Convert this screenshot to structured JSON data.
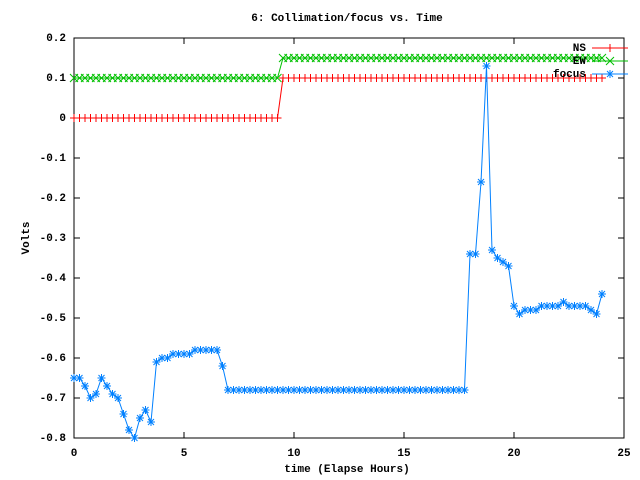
{
  "chart_data": {
    "type": "line",
    "title": "6: Collimation/focus vs. Time",
    "x_label": "time (Elapse Hours)",
    "y_label": "Volts",
    "xlim": [
      0,
      25
    ],
    "ylim": [
      -0.8,
      0.2
    ],
    "xticks": [
      0,
      5,
      10,
      15,
      20,
      25
    ],
    "yticks": [
      0.2,
      0.1,
      0,
      -0.1,
      -0.2,
      -0.3,
      -0.4,
      -0.5,
      -0.6,
      -0.7,
      -0.8
    ],
    "grid": false,
    "legend": "top-right",
    "x": [
      0,
      0.25,
      0.5,
      0.75,
      1,
      1.25,
      1.5,
      1.75,
      2,
      2.25,
      2.5,
      2.75,
      3,
      3.25,
      3.5,
      3.75,
      4,
      4.25,
      4.5,
      4.75,
      5,
      5.25,
      5.5,
      5.75,
      6,
      6.25,
      6.5,
      6.75,
      7,
      7.25,
      7.5,
      7.75,
      8,
      8.25,
      8.5,
      8.75,
      9,
      9.25,
      9.5,
      9.75,
      10,
      10.25,
      10.5,
      10.75,
      11,
      11.25,
      11.5,
      11.75,
      12,
      12.25,
      12.5,
      12.75,
      13,
      13.25,
      13.5,
      13.75,
      14,
      14.25,
      14.5,
      14.75,
      15,
      15.25,
      15.5,
      15.75,
      16,
      16.25,
      16.5,
      16.75,
      17,
      17.25,
      17.5,
      17.75,
      18,
      18.25,
      18.5,
      18.75,
      19,
      19.25,
      19.5,
      19.75,
      20,
      20.25,
      20.5,
      20.75,
      21,
      21.25,
      21.5,
      21.75,
      22,
      22.25,
      22.5,
      22.75,
      23,
      23.25,
      23.5,
      23.75,
      24
    ],
    "series": [
      {
        "name": "NS",
        "color": "#ff0000",
        "marker": "+",
        "values": [
          0,
          0,
          0,
          0,
          0,
          0,
          0,
          0,
          0,
          0,
          0,
          0,
          0,
          0,
          0,
          0,
          0,
          0,
          0,
          0,
          0,
          0,
          0,
          0,
          0,
          0,
          0,
          0,
          0,
          0,
          0,
          0,
          0,
          0,
          0,
          0,
          0,
          0,
          0.1,
          0.1,
          0.1,
          0.1,
          0.1,
          0.1,
          0.1,
          0.1,
          0.1,
          0.1,
          0.1,
          0.1,
          0.1,
          0.1,
          0.1,
          0.1,
          0.1,
          0.1,
          0.1,
          0.1,
          0.1,
          0.1,
          0.1,
          0.1,
          0.1,
          0.1,
          0.1,
          0.1,
          0.1,
          0.1,
          0.1,
          0.1,
          0.1,
          0.1,
          0.1,
          0.1,
          0.1,
          0.1,
          0.1,
          0.1,
          0.1,
          0.1,
          0.1,
          0.1,
          0.1,
          0.1,
          0.1,
          0.1,
          0.1,
          0.1,
          0.1,
          0.1,
          0.1,
          0.1,
          0.1,
          0.1,
          0.1,
          0.1,
          0.1
        ]
      },
      {
        "name": "EW",
        "color": "#00c000",
        "marker": "x",
        "values": [
          0.1,
          0.1,
          0.1,
          0.1,
          0.1,
          0.1,
          0.1,
          0.1,
          0.1,
          0.1,
          0.1,
          0.1,
          0.1,
          0.1,
          0.1,
          0.1,
          0.1,
          0.1,
          0.1,
          0.1,
          0.1,
          0.1,
          0.1,
          0.1,
          0.1,
          0.1,
          0.1,
          0.1,
          0.1,
          0.1,
          0.1,
          0.1,
          0.1,
          0.1,
          0.1,
          0.1,
          0.1,
          0.1,
          0.15,
          0.15,
          0.15,
          0.15,
          0.15,
          0.15,
          0.15,
          0.15,
          0.15,
          0.15,
          0.15,
          0.15,
          0.15,
          0.15,
          0.15,
          0.15,
          0.15,
          0.15,
          0.15,
          0.15,
          0.15,
          0.15,
          0.15,
          0.15,
          0.15,
          0.15,
          0.15,
          0.15,
          0.15,
          0.15,
          0.15,
          0.15,
          0.15,
          0.15,
          0.15,
          0.15,
          0.15,
          0.15,
          0.15,
          0.15,
          0.15,
          0.15,
          0.15,
          0.15,
          0.15,
          0.15,
          0.15,
          0.15,
          0.15,
          0.15,
          0.15,
          0.15,
          0.15,
          0.15,
          0.15,
          0.15,
          0.15,
          0.15,
          0.15
        ]
      },
      {
        "name": "focus",
        "color": "#0080ff",
        "marker": "*",
        "values": [
          -0.65,
          -0.65,
          -0.67,
          -0.7,
          -0.69,
          -0.65,
          -0.67,
          -0.69,
          -0.7,
          -0.74,
          -0.78,
          -0.8,
          -0.75,
          -0.73,
          -0.76,
          -0.61,
          -0.6,
          -0.6,
          -0.59,
          -0.59,
          -0.59,
          -0.59,
          -0.58,
          -0.58,
          -0.58,
          -0.58,
          -0.58,
          -0.62,
          -0.68,
          -0.68,
          -0.68,
          -0.68,
          -0.68,
          -0.68,
          -0.68,
          -0.68,
          -0.68,
          -0.68,
          -0.68,
          -0.68,
          -0.68,
          -0.68,
          -0.68,
          -0.68,
          -0.68,
          -0.68,
          -0.68,
          -0.68,
          -0.68,
          -0.68,
          -0.68,
          -0.68,
          -0.68,
          -0.68,
          -0.68,
          -0.68,
          -0.68,
          -0.68,
          -0.68,
          -0.68,
          -0.68,
          -0.68,
          -0.68,
          -0.68,
          -0.68,
          -0.68,
          -0.68,
          -0.68,
          -0.68,
          -0.68,
          -0.68,
          -0.68,
          -0.34,
          -0.34,
          -0.16,
          0.13,
          -0.33,
          -0.35,
          -0.36,
          -0.37,
          -0.47,
          -0.49,
          -0.48,
          -0.48,
          -0.48,
          -0.47,
          -0.47,
          -0.47,
          -0.47,
          -0.46,
          -0.47,
          -0.47,
          -0.47,
          -0.47,
          -0.48,
          -0.49,
          -0.44
        ]
      }
    ]
  }
}
